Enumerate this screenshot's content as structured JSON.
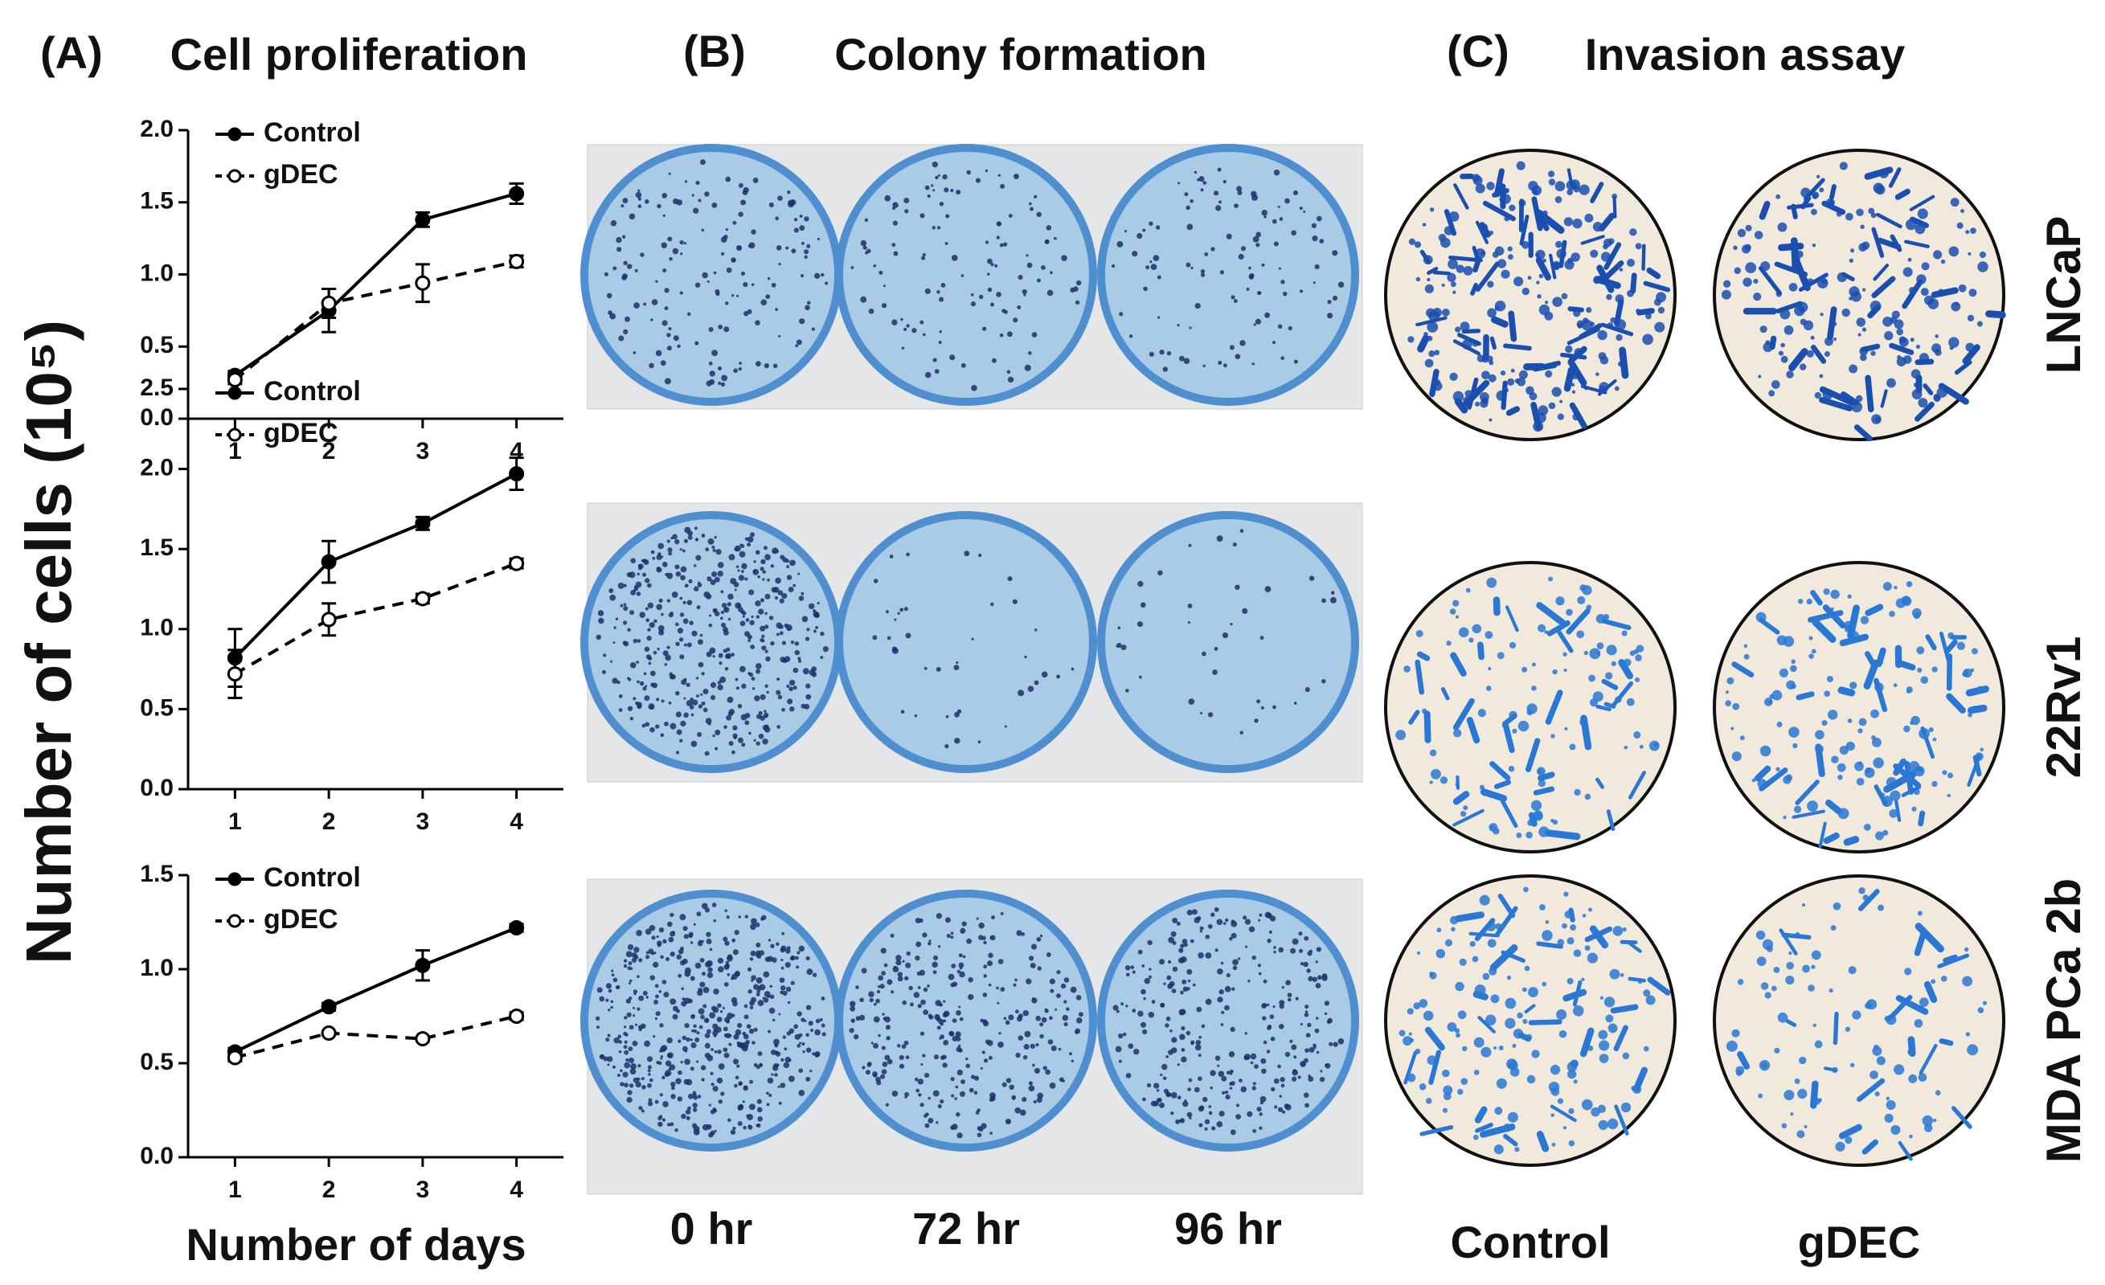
{
  "panel_a": {
    "label": "(A)",
    "title": "Cell proliferation",
    "y_label": "Number of cells (10⁵)",
    "x_label": "Number of days"
  },
  "chart_data": [
    {
      "type": "line",
      "x": [
        1,
        2,
        3,
        4
      ],
      "xlim": [
        0.5,
        4.5
      ],
      "xticks": [
        1,
        2,
        3,
        4
      ],
      "ylim": [
        0,
        2
      ],
      "yticks": [
        {
          "value": 0,
          "label": "0.0"
        },
        0.5,
        {
          "value": 1,
          "label": "1.0"
        },
        1.5,
        {
          "value": 2,
          "label": "2.0"
        }
      ],
      "legend": "upper left",
      "series": [
        {
          "name": "Control",
          "color": "#000000",
          "line_style": "solid",
          "marker": "filled",
          "values": [
            0.3,
            0.75,
            1.38,
            1.56
          ],
          "errors": [
            0.03,
            0.15,
            0.05,
            0.07
          ]
        },
        {
          "name": "gDEC",
          "color": "#000000",
          "line_style": "dashed",
          "marker": "open",
          "values": [
            0.27,
            0.8,
            0.94,
            1.09
          ],
          "errors": [
            0.03,
            0.1,
            0.13,
            0.04
          ]
        }
      ]
    },
    {
      "type": "line",
      "x": [
        1,
        2,
        3,
        4
      ],
      "xlim": [
        0.5,
        4.5
      ],
      "xticks": [
        1,
        2,
        3,
        4
      ],
      "ylim": [
        0,
        2.5
      ],
      "yticks": [
        {
          "value": 0,
          "label": "0.0"
        },
        0.5,
        {
          "value": 1,
          "label": "1.0"
        },
        1.5,
        {
          "value": 2,
          "label": "2.0"
        },
        2.5
      ],
      "legend": "upper left",
      "series": [
        {
          "name": "Control",
          "color": "#000000",
          "line_style": "solid",
          "marker": "filled",
          "values": [
            0.82,
            1.42,
            1.66,
            1.97
          ],
          "errors": [
            0.18,
            0.13,
            0.04,
            0.1
          ]
        },
        {
          "name": "gDEC",
          "color": "#000000",
          "line_style": "dashed",
          "marker": "open",
          "values": [
            0.72,
            1.06,
            1.19,
            1.41
          ],
          "errors": [
            0.15,
            0.1,
            0.03,
            0.03
          ]
        }
      ]
    },
    {
      "type": "line",
      "x": [
        1,
        2,
        3,
        4
      ],
      "xlim": [
        0.5,
        4.5
      ],
      "xticks": [
        1,
        2,
        3,
        4
      ],
      "ylim": [
        0,
        1.5
      ],
      "yticks": [
        {
          "value": 0,
          "label": "0.0"
        },
        0.5,
        {
          "value": 1,
          "label": "1.0"
        },
        1.5
      ],
      "legend": "upper left",
      "series": [
        {
          "name": "Control",
          "color": "#000000",
          "line_style": "solid",
          "marker": "filled",
          "values": [
            0.56,
            0.8,
            1.02,
            1.22
          ],
          "errors": [
            0.02,
            0.02,
            0.08,
            0.02
          ]
        },
        {
          "name": "gDEC",
          "color": "#000000",
          "line_style": "dashed",
          "marker": "open",
          "values": [
            0.53,
            0.66,
            0.63,
            0.75
          ],
          "errors": [
            0.02,
            0.01,
            0.01,
            0.02
          ]
        }
      ]
    }
  ],
  "panel_b": {
    "label": "(B)",
    "title": "Colony formation",
    "columns": [
      "0 hr",
      "72 hr",
      "96 hr"
    ]
  },
  "panel_c": {
    "label": "(C)",
    "title": "Invasion assay",
    "columns": [
      "Control",
      "gDEC"
    ],
    "rows": [
      "LNCaP",
      "22Rv1",
      "MDA PCa 2b"
    ]
  }
}
